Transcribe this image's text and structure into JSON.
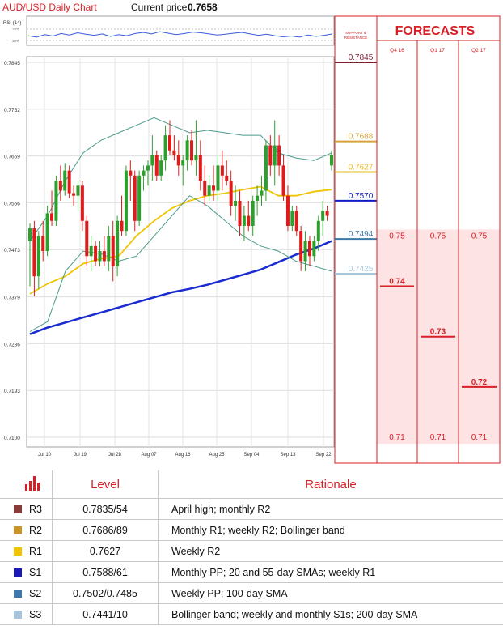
{
  "header": {
    "title": "AUD/USD Daily Chart",
    "price_label": "Current price",
    "price_value": "0.7658"
  },
  "rsi": {
    "label": "RSI (14)",
    "level_high": "70%",
    "level_low": "30%"
  },
  "sr_panel": {
    "title_line1": "SUPPORT &",
    "title_line2": "RESISTANCE"
  },
  "forecast_panel": {
    "title": "FORECASTS",
    "periods": [
      "Q4 16",
      "Q1 17",
      "Q2 17"
    ]
  },
  "chart_data": {
    "type": "line",
    "title": "AUD/USD Daily Chart",
    "x_ticks": [
      "Jul 10",
      "Jul 19",
      "Jul 28",
      "Aug 07",
      "Aug 16",
      "Aug 25",
      "Sep 04",
      "Sep 13",
      "Sep 22"
    ],
    "y_ticks": [
      "0.7845",
      "0.7752",
      "0.7659",
      "0.7566",
      "0.7473",
      "0.7379",
      "0.7286",
      "0.7193",
      "0.7100"
    ],
    "ylim": [
      0.71,
      0.7845
    ],
    "grid": true,
    "candles": [
      {
        "o": 0.749,
        "h": 0.7525,
        "l": 0.74,
        "c": 0.7515
      },
      {
        "o": 0.7515,
        "h": 0.753,
        "l": 0.738,
        "c": 0.742
      },
      {
        "o": 0.742,
        "h": 0.751,
        "l": 0.7395,
        "c": 0.75
      },
      {
        "o": 0.75,
        "h": 0.753,
        "l": 0.745,
        "c": 0.747
      },
      {
        "o": 0.747,
        "h": 0.756,
        "l": 0.746,
        "c": 0.7545
      },
      {
        "o": 0.7545,
        "h": 0.759,
        "l": 0.752,
        "c": 0.753
      },
      {
        "o": 0.753,
        "h": 0.762,
        "l": 0.752,
        "c": 0.761
      },
      {
        "o": 0.761,
        "h": 0.764,
        "l": 0.757,
        "c": 0.759
      },
      {
        "o": 0.759,
        "h": 0.7645,
        "l": 0.758,
        "c": 0.763
      },
      {
        "o": 0.763,
        "h": 0.764,
        "l": 0.7575,
        "c": 0.7585
      },
      {
        "o": 0.7585,
        "h": 0.76,
        "l": 0.756,
        "c": 0.758
      },
      {
        "o": 0.758,
        "h": 0.761,
        "l": 0.755,
        "c": 0.76
      },
      {
        "o": 0.76,
        "h": 0.761,
        "l": 0.751,
        "c": 0.753
      },
      {
        "o": 0.753,
        "h": 0.754,
        "l": 0.744,
        "c": 0.746
      },
      {
        "o": 0.746,
        "h": 0.75,
        "l": 0.743,
        "c": 0.748
      },
      {
        "o": 0.748,
        "h": 0.749,
        "l": 0.744,
        "c": 0.745
      },
      {
        "o": 0.745,
        "h": 0.749,
        "l": 0.744,
        "c": 0.747
      },
      {
        "o": 0.747,
        "h": 0.75,
        "l": 0.744,
        "c": 0.745
      },
      {
        "o": 0.745,
        "h": 0.752,
        "l": 0.743,
        "c": 0.75
      },
      {
        "o": 0.75,
        "h": 0.753,
        "l": 0.741,
        "c": 0.744
      },
      {
        "o": 0.744,
        "h": 0.754,
        "l": 0.742,
        "c": 0.753
      },
      {
        "o": 0.753,
        "h": 0.758,
        "l": 0.75,
        "c": 0.751
      },
      {
        "o": 0.751,
        "h": 0.764,
        "l": 0.75,
        "c": 0.763
      },
      {
        "o": 0.763,
        "h": 0.765,
        "l": 0.757,
        "c": 0.762
      },
      {
        "o": 0.762,
        "h": 0.763,
        "l": 0.751,
        "c": 0.753
      },
      {
        "o": 0.753,
        "h": 0.763,
        "l": 0.752,
        "c": 0.762
      },
      {
        "o": 0.762,
        "h": 0.764,
        "l": 0.759,
        "c": 0.763
      },
      {
        "o": 0.763,
        "h": 0.765,
        "l": 0.76,
        "c": 0.764
      },
      {
        "o": 0.764,
        "h": 0.77,
        "l": 0.761,
        "c": 0.766
      },
      {
        "o": 0.766,
        "h": 0.767,
        "l": 0.761,
        "c": 0.762
      },
      {
        "o": 0.762,
        "h": 0.766,
        "l": 0.761,
        "c": 0.765
      },
      {
        "o": 0.765,
        "h": 0.772,
        "l": 0.763,
        "c": 0.77
      },
      {
        "o": 0.77,
        "h": 0.773,
        "l": 0.766,
        "c": 0.767
      },
      {
        "o": 0.767,
        "h": 0.77,
        "l": 0.765,
        "c": 0.766
      },
      {
        "o": 0.766,
        "h": 0.769,
        "l": 0.762,
        "c": 0.764
      },
      {
        "o": 0.764,
        "h": 0.766,
        "l": 0.76,
        "c": 0.765
      },
      {
        "o": 0.765,
        "h": 0.77,
        "l": 0.763,
        "c": 0.769
      },
      {
        "o": 0.769,
        "h": 0.771,
        "l": 0.764,
        "c": 0.765
      },
      {
        "o": 0.765,
        "h": 0.773,
        "l": 0.762,
        "c": 0.766
      },
      {
        "o": 0.766,
        "h": 0.769,
        "l": 0.759,
        "c": 0.761
      },
      {
        "o": 0.761,
        "h": 0.764,
        "l": 0.756,
        "c": 0.758
      },
      {
        "o": 0.758,
        "h": 0.762,
        "l": 0.757,
        "c": 0.76
      },
      {
        "o": 0.76,
        "h": 0.764,
        "l": 0.757,
        "c": 0.759
      },
      {
        "o": 0.759,
        "h": 0.766,
        "l": 0.757,
        "c": 0.764
      },
      {
        "o": 0.764,
        "h": 0.767,
        "l": 0.759,
        "c": 0.762
      },
      {
        "o": 0.762,
        "h": 0.765,
        "l": 0.76,
        "c": 0.761
      },
      {
        "o": 0.761,
        "h": 0.763,
        "l": 0.754,
        "c": 0.756
      },
      {
        "o": 0.756,
        "h": 0.76,
        "l": 0.753,
        "c": 0.757
      },
      {
        "o": 0.757,
        "h": 0.759,
        "l": 0.75,
        "c": 0.752
      },
      {
        "o": 0.752,
        "h": 0.756,
        "l": 0.749,
        "c": 0.754
      },
      {
        "o": 0.754,
        "h": 0.757,
        "l": 0.751,
        "c": 0.752
      },
      {
        "o": 0.752,
        "h": 0.758,
        "l": 0.75,
        "c": 0.757
      },
      {
        "o": 0.757,
        "h": 0.76,
        "l": 0.754,
        "c": 0.758
      },
      {
        "o": 0.758,
        "h": 0.762,
        "l": 0.756,
        "c": 0.759
      },
      {
        "o": 0.759,
        "h": 0.769,
        "l": 0.757,
        "c": 0.768
      },
      {
        "o": 0.768,
        "h": 0.77,
        "l": 0.762,
        "c": 0.764
      },
      {
        "o": 0.764,
        "h": 0.773,
        "l": 0.76,
        "c": 0.768
      },
      {
        "o": 0.768,
        "h": 0.77,
        "l": 0.762,
        "c": 0.764
      },
      {
        "o": 0.764,
        "h": 0.766,
        "l": 0.757,
        "c": 0.758
      },
      {
        "o": 0.758,
        "h": 0.76,
        "l": 0.751,
        "c": 0.752
      },
      {
        "o": 0.752,
        "h": 0.756,
        "l": 0.751,
        "c": 0.755
      },
      {
        "o": 0.755,
        "h": 0.756,
        "l": 0.75,
        "c": 0.751
      },
      {
        "o": 0.751,
        "h": 0.752,
        "l": 0.743,
        "c": 0.745
      },
      {
        "o": 0.745,
        "h": 0.751,
        "l": 0.743,
        "c": 0.749
      },
      {
        "o": 0.749,
        "h": 0.75,
        "l": 0.744,
        "c": 0.746
      },
      {
        "o": 0.746,
        "h": 0.75,
        "l": 0.745,
        "c": 0.749
      },
      {
        "o": 0.749,
        "h": 0.754,
        "l": 0.747,
        "c": 0.753
      },
      {
        "o": 0.753,
        "h": 0.757,
        "l": 0.75,
        "c": 0.755
      },
      {
        "o": 0.755,
        "h": 0.756,
        "l": 0.753,
        "c": 0.754
      },
      {
        "o": 0.764,
        "h": 0.767,
        "l": 0.763,
        "c": 0.766
      }
    ],
    "series": [
      {
        "values": [
          0.7385,
          0.7405,
          0.742,
          0.7445,
          0.7455,
          0.746,
          0.75,
          0.753,
          0.7555,
          0.757,
          0.758,
          0.7585,
          0.7592,
          0.7598,
          0.758,
          0.758,
          0.7588,
          0.7592
        ]
      },
      {
        "values": [
          0.7305,
          0.7318,
          0.7328,
          0.7338,
          0.7348,
          0.7358,
          0.7368,
          0.7378,
          0.7388,
          0.7395,
          0.7403,
          0.7413,
          0.7423,
          0.7433,
          0.7448,
          0.7463,
          0.7475,
          0.749
        ]
      },
      {
        "values": [
          0.749,
          0.754,
          0.761,
          0.7665,
          0.769,
          0.7705,
          0.772,
          0.7735,
          0.772,
          0.7705,
          0.771,
          0.7705,
          0.77,
          0.77,
          0.7665,
          0.7655,
          0.765,
          0.7665
        ]
      },
      {
        "values": [
          0.731,
          0.733,
          0.743,
          0.747,
          0.7465,
          0.745,
          0.746,
          0.75,
          0.754,
          0.758,
          0.756,
          0.753,
          0.75,
          0.748,
          0.747,
          0.745,
          0.744,
          0.743
        ]
      }
    ],
    "rsi_values": [
      52,
      48,
      55,
      51,
      58,
      54,
      60,
      56,
      53,
      57,
      50,
      55,
      52,
      58,
      61,
      57,
      63,
      59,
      55,
      58,
      62,
      60,
      57,
      54,
      56,
      59,
      61,
      57,
      53,
      56,
      52,
      49,
      51,
      48,
      54,
      50,
      53,
      57
    ]
  },
  "sr_levels": [
    {
      "value": "0.7845",
      "color": "#7b1f35"
    },
    {
      "value": "0.7688",
      "color": "#d4a43a"
    },
    {
      "value": "0.7627",
      "color": "#e8b820"
    },
    {
      "value": "0.7570",
      "color": "#0f1dc4"
    },
    {
      "value": "0.7494",
      "color": "#3a78a8"
    },
    {
      "value": "0.7425",
      "color": "#a6c8dc"
    }
  ],
  "forecasts": {
    "q4_16": {
      "high": "0.75",
      "mid": "0.74",
      "low": "0.71"
    },
    "q1_17": {
      "high": "0.75",
      "mid": "0.73",
      "low": "0.71"
    },
    "q2_17": {
      "high": "0.75",
      "mid": "0.72",
      "low": "0.71"
    }
  },
  "table": {
    "headers": {
      "level": "Level",
      "rationale": "Rationale"
    },
    "header_icon": "bar-chart-icon",
    "rows": [
      {
        "label": "R3",
        "value": "0.7835/54",
        "rationale": "April high; monthly R2",
        "color": "#8b3a3a"
      },
      {
        "label": "R2",
        "value": "0.7686/89",
        "rationale": "Monthly R1; weekly R2; Bollinger band",
        "color": "#c9932a"
      },
      {
        "label": "R1",
        "value": "0.7627",
        "rationale": "Weekly R2",
        "color": "#f0c400"
      },
      {
        "label": "S1",
        "value": "0.7588/61",
        "rationale": "Monthly PP; 20 and 55-day SMAs; weekly R1",
        "color": "#1a1ab8"
      },
      {
        "label": "S2",
        "value": "0.7502/0.7485",
        "rationale": "Weekly PP; 100-day SMA",
        "color": "#3f78ad"
      },
      {
        "label": "S3",
        "value": "0.7441/10",
        "rationale": "Bollinger band; weekly and monthly S1s; 200-day SMA",
        "color": "#a8c4dc"
      }
    ]
  }
}
